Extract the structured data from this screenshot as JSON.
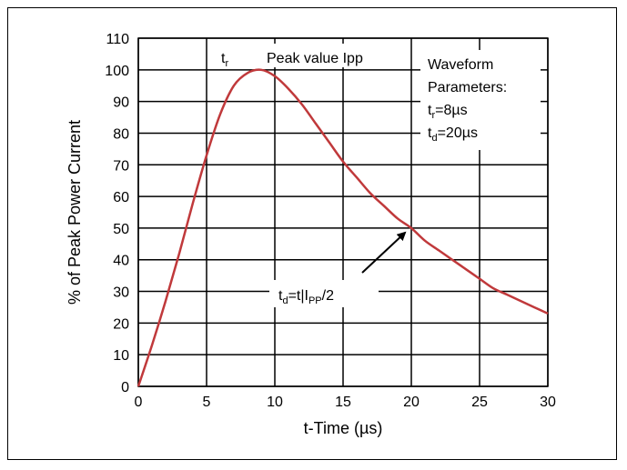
{
  "chart_data": {
    "type": "line",
    "xlabel": "t-Time (µs)",
    "ylabel": "% of Peak Power Current",
    "xlim": [
      0,
      30
    ],
    "ylim": [
      0,
      110
    ],
    "x_ticks": [
      "0",
      "5",
      "10",
      "15",
      "20",
      "25",
      "30"
    ],
    "y_ticks": [
      "0",
      "10",
      "20",
      "30",
      "40",
      "50",
      "60",
      "70",
      "80",
      "90",
      "100",
      "110"
    ],
    "grid": true,
    "series": [
      {
        "color": "#c0393b",
        "x": [
          0,
          1,
          2,
          3,
          4,
          5,
          6,
          7,
          8,
          9,
          10,
          11,
          12,
          13,
          14,
          15,
          16,
          17,
          18,
          19,
          20,
          21,
          22,
          23,
          24,
          25,
          26,
          27,
          28,
          29,
          30
        ],
        "y": [
          0,
          13,
          27,
          42,
          58,
          73,
          86,
          95,
          99,
          100,
          98,
          94,
          89,
          83,
          77,
          71,
          66,
          61,
          57,
          53,
          50,
          46,
          43,
          40,
          37,
          34,
          31,
          29,
          27,
          25,
          23
        ]
      }
    ],
    "annotations": {
      "tr_main": "t",
      "tr_sub": "r",
      "peak": "Peak value Ipp",
      "params_line1": "Waveform",
      "params_line2": "Parameters:",
      "params_tr_main": "t",
      "params_tr_sub": "r",
      "params_tr_val": "=8µs",
      "params_td_main": "t",
      "params_td_sub": "d",
      "params_td_val": "=20µs",
      "td_main": "t",
      "td_sub": "d",
      "td_mid": "=t|I",
      "td_sub2": "PP",
      "td_end": "/2"
    }
  }
}
